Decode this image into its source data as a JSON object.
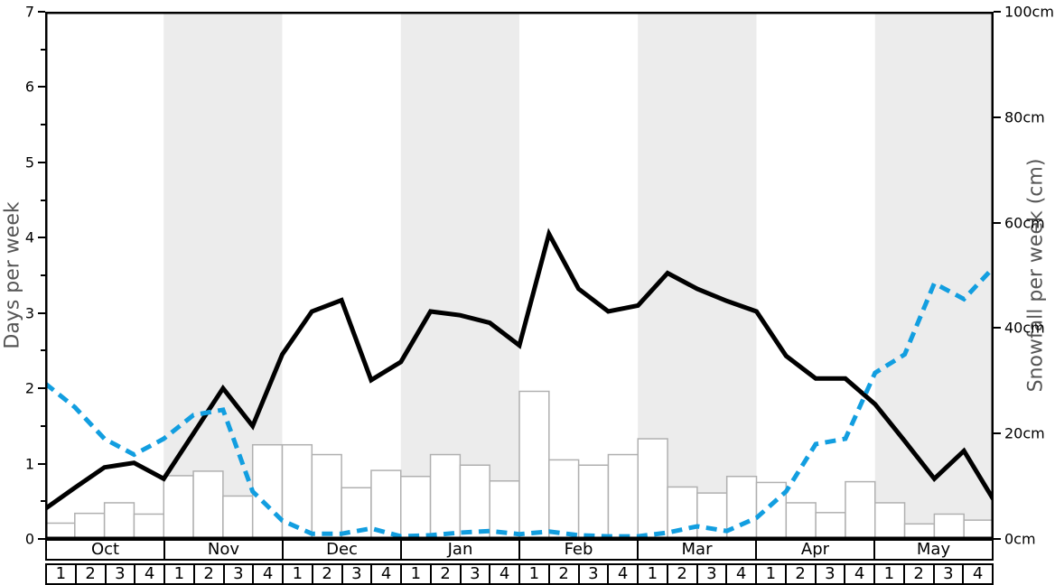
{
  "chart_data": {
    "type": "line+bar",
    "title": "",
    "months": [
      "Oct",
      "Nov",
      "Dec",
      "Jan",
      "Feb",
      "Mar",
      "Apr",
      "May"
    ],
    "week_labels": [
      "1",
      "2",
      "3",
      "4"
    ],
    "left_axis": {
      "label": "Days per week",
      "range": [
        0,
        7
      ],
      "major_ticks": [
        "0",
        "1",
        "2",
        "3",
        "4",
        "5",
        "6",
        "7"
      ],
      "minor_tick_step": 0.5
    },
    "right_axis": {
      "label": "Snowfall per week (cm)",
      "range": [
        0,
        100
      ],
      "major_ticks": [
        "0cm",
        "20cm",
        "40cm",
        "60cm",
        "80cm",
        "100cm"
      ]
    },
    "series": [
      {
        "name": "days-per-week-line",
        "type": "line",
        "style": "solid",
        "color": "#000000",
        "axis": "left",
        "values": [
          0.4,
          0.68,
          0.95,
          1.01,
          0.8,
          1.4,
          2.0,
          1.5,
          2.45,
          3.02,
          3.17,
          2.11,
          2.35,
          3.02,
          2.97,
          2.87,
          2.57,
          4.05,
          3.32,
          3.02,
          3.1,
          3.53,
          3.32,
          3.16,
          3.02,
          2.43,
          2.13,
          2.13,
          1.79,
          1.3,
          0.8,
          1.17,
          0.52
        ]
      },
      {
        "name": "snowfall-per-week-line",
        "type": "line",
        "style": "dashed",
        "color": "#129EE0",
        "axis": "right",
        "values": [
          29.5,
          25,
          19,
          16,
          19,
          23.5,
          24.5,
          9,
          3.5,
          1,
          1,
          2,
          0.5,
          0.7,
          1.2,
          1.5,
          0.9,
          1.4,
          0.7,
          0.5,
          0.5,
          1.2,
          2.4,
          1.5,
          4,
          9,
          18,
          19,
          31.5,
          35,
          48.5,
          45.5,
          51.5
        ]
      },
      {
        "name": "weekly-bars",
        "type": "bar",
        "axis": "left",
        "fill": "#ffffff",
        "border": "#b0b0b0",
        "values": [
          0.21,
          0.34,
          0.48,
          0.33,
          0.84,
          0.9,
          0.57,
          1.25,
          1.25,
          1.12,
          0.68,
          0.91,
          0.83,
          1.12,
          0.98,
          0.77,
          1.96,
          1.05,
          0.98,
          1.12,
          1.33,
          0.69,
          0.61,
          0.83,
          0.75,
          0.48,
          0.35,
          0.76,
          0.48,
          0.2,
          0.33,
          0.25
        ]
      }
    ],
    "band_colors": {
      "even_month": "#ffffff",
      "odd_month": "#ececec"
    },
    "layout_hints": {
      "grid": false,
      "legend": false,
      "plot_border_color": "#000000"
    }
  }
}
